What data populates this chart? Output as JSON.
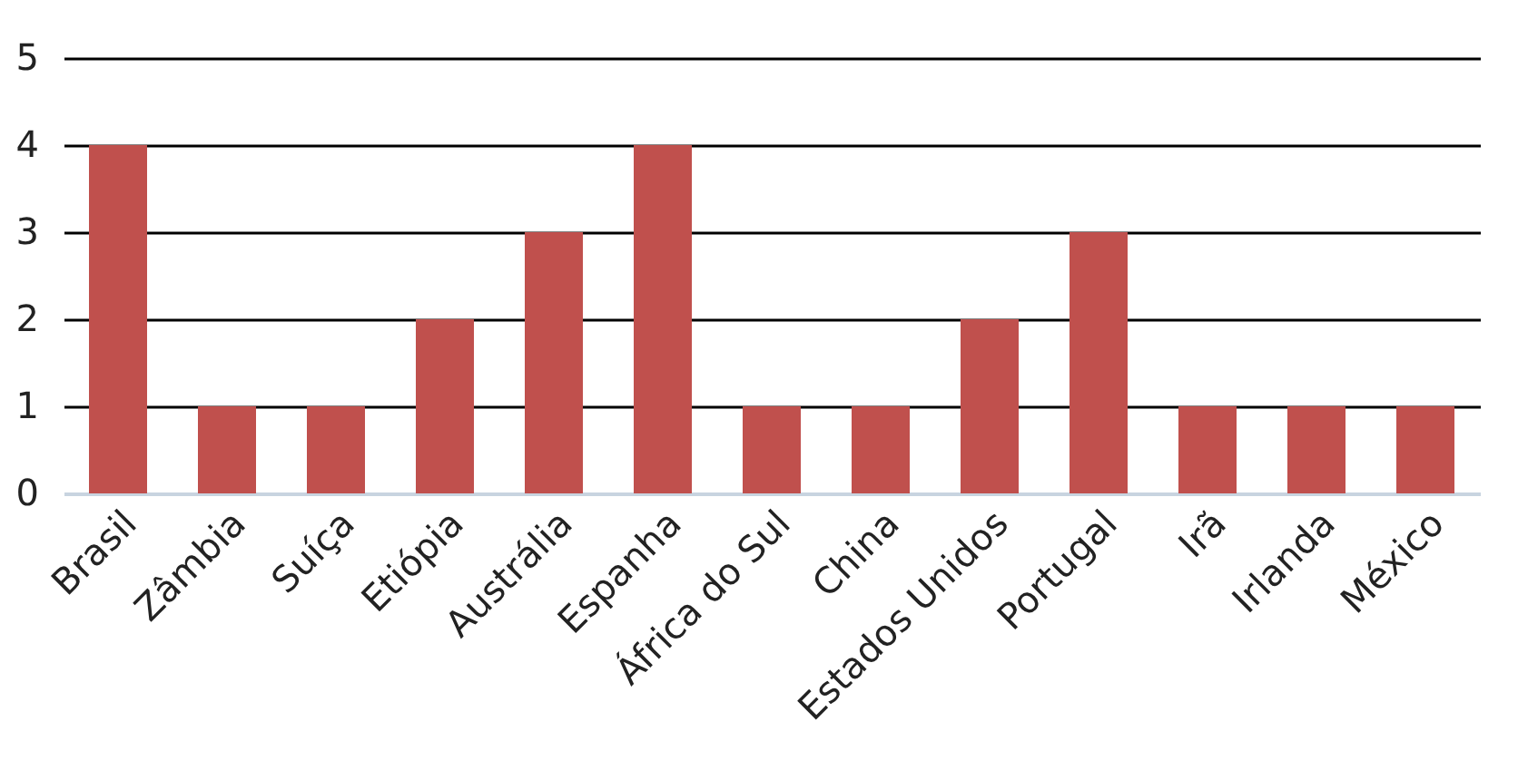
{
  "chart_data": {
    "type": "bar",
    "categories": [
      "Brasil",
      "Zâmbia",
      "Suíça",
      "Etiópia",
      "Austrália",
      "Espanha",
      "África do Sul",
      "China",
      "Estados Unidos",
      "Portugal",
      "Irã",
      "Irlanda",
      "México"
    ],
    "values": [
      4,
      1,
      1,
      2,
      3,
      4,
      1,
      1,
      2,
      3,
      1,
      1,
      1
    ],
    "color": "#c0504d",
    "ylim": [
      0,
      5
    ],
    "yticks": [
      0,
      1,
      2,
      3,
      4,
      5
    ],
    "grid": "y"
  }
}
